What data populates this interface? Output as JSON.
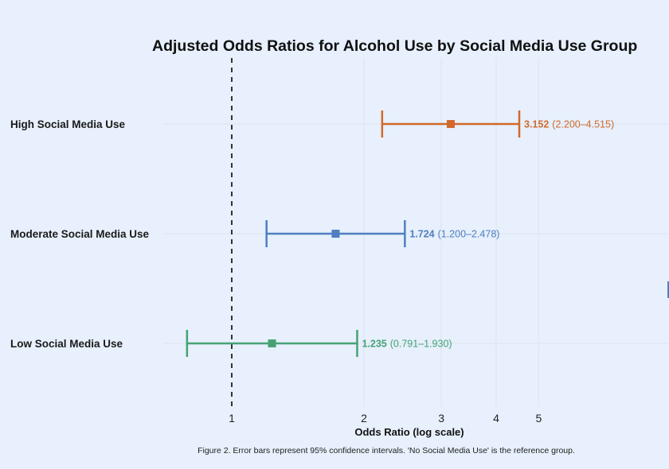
{
  "chart_data": {
    "type": "forest",
    "title": "Adjusted Odds Ratios for Alcohol Use by Social Media Use Group",
    "xlabel": "Odds Ratio (log scale)",
    "ylabel": "",
    "x_scale": "log",
    "xlim": [
      0.75,
      6.4
    ],
    "x_ticks": [
      1,
      2,
      3,
      4,
      5
    ],
    "x_tick_labels": [
      "1",
      "2",
      "3",
      "4",
      "5"
    ],
    "reference_line": 1,
    "grid": "vertical-major",
    "caption": "Figure 2. Error bars represent 95% confidence intervals. 'No Social Media Use' is the reference group.",
    "categories": [
      "High Social Media Use",
      "Moderate Social Media Use",
      "Low Social Media Use"
    ],
    "series": [
      {
        "name": "High Social Media Use",
        "or": 3.152,
        "lower": 2.2,
        "upper": 4.515,
        "color": "#d2692b",
        "label_bold": "3.152",
        "label_ci": "(2.200–4.515)"
      },
      {
        "name": "Moderate Social Media Use",
        "or": 1.724,
        "lower": 1.2,
        "upper": 2.478,
        "color": "#4f7fc0",
        "label_bold": "1.724",
        "label_ci": "(1.200–2.478)"
      },
      {
        "name": "Low Social Media Use",
        "or": 1.235,
        "lower": 0.791,
        "upper": 1.93,
        "color": "#46a275",
        "label_bold": "1.235",
        "label_ci": "(0.791–1.930)"
      }
    ]
  },
  "colors": {
    "background": "#e7f0fc",
    "reference_line": "#333333",
    "grid": "#dde4ee"
  }
}
